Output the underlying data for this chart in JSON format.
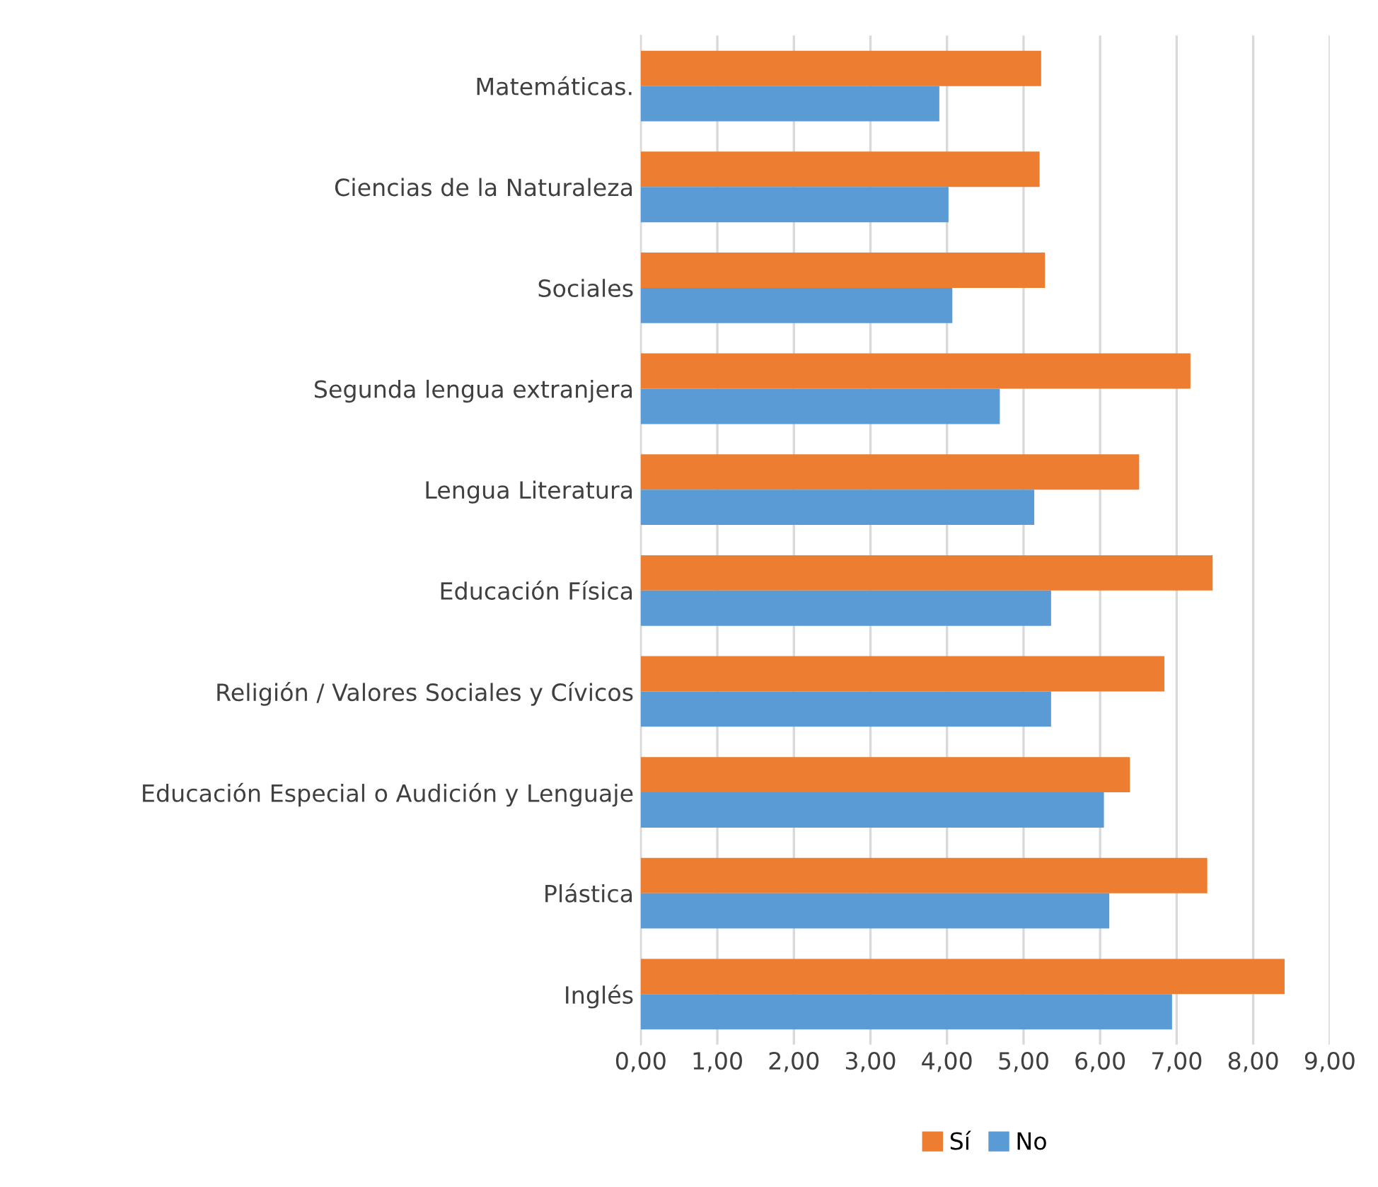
{
  "chart_data": {
    "type": "bar",
    "orientation": "horizontal",
    "categories": [
      "Matemáticas.",
      "Ciencias de la Naturaleza",
      "Sociales",
      "Segunda lengua extranjera",
      "Lengua Literatura",
      "Educación Física",
      "Religión / Valores Sociales y Cívicos",
      "Educación Especial o Audición y Lenguaje",
      "Plástica",
      "Inglés"
    ],
    "series": [
      {
        "name": "Sí",
        "color": "#ed7d31",
        "values": [
          5.23,
          5.21,
          5.28,
          7.18,
          6.51,
          7.47,
          6.84,
          6.39,
          7.4,
          8.41
        ]
      },
      {
        "name": "No",
        "color": "#5b9bd5",
        "values": [
          3.9,
          4.02,
          4.07,
          4.69,
          5.14,
          5.36,
          5.36,
          6.05,
          6.12,
          6.94
        ]
      }
    ],
    "xlim": [
      0,
      9
    ],
    "xticks": [
      {
        "value": 0,
        "label": "0,00"
      },
      {
        "value": 1,
        "label": "1,00"
      },
      {
        "value": 2,
        "label": "2,00"
      },
      {
        "value": 3,
        "label": "3,00"
      },
      {
        "value": 4,
        "label": "4,00"
      },
      {
        "value": 5,
        "label": "5,00"
      },
      {
        "value": 6,
        "label": "6,00"
      },
      {
        "value": 7,
        "label": "7,00"
      },
      {
        "value": 8,
        "label": "8,00"
      },
      {
        "value": 9,
        "label": "9,00"
      }
    ],
    "grid": "x",
    "legend": "bottom"
  }
}
